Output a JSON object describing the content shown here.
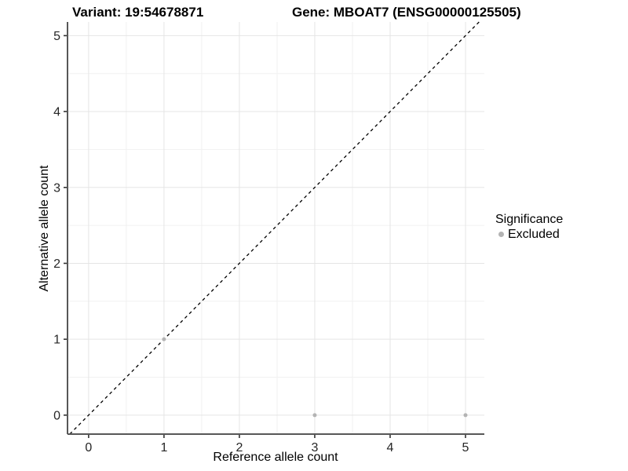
{
  "header": {
    "variant_title": "Variant: 19:54678871",
    "gene_title": "Gene: MBOAT7 (ENSG00000125505)"
  },
  "chart_data": {
    "type": "scatter",
    "xlabel": "Reference allele count",
    "ylabel": "Alternative allele count",
    "x_ticks": [
      0,
      1,
      2,
      3,
      4,
      5
    ],
    "y_ticks": [
      0,
      1,
      2,
      3,
      4,
      5
    ],
    "x_minor_ticks": [
      0.5,
      1.5,
      2.5,
      3.5,
      4.5
    ],
    "y_minor_ticks": [
      0.5,
      1.5,
      2.5,
      3.5,
      4.5
    ],
    "xlim": [
      -0.28,
      5.25
    ],
    "ylim": [
      -0.25,
      5.18
    ],
    "grid": true,
    "identity_line": {
      "style": "dashed",
      "slope": 1,
      "intercept": 0
    },
    "series": [
      {
        "name": "Excluded",
        "points": [
          {
            "x": 1,
            "y": 1
          },
          {
            "x": 3,
            "y": 0
          },
          {
            "x": 5,
            "y": 0
          }
        ]
      }
    ],
    "legend": {
      "title": "Significance",
      "position": "right",
      "entries": [
        {
          "label": "Excluded",
          "color": "#b3b3b3"
        }
      ]
    },
    "colors": {
      "point": "#b3b3b3",
      "axis_line": "#575757",
      "tick_mark": "#333333",
      "tick_label": "#262626",
      "grid_major": "#e5e5e5",
      "grid_minor": "#f1f1f1",
      "identity_line": "#000000",
      "background": "#ffffff"
    }
  }
}
